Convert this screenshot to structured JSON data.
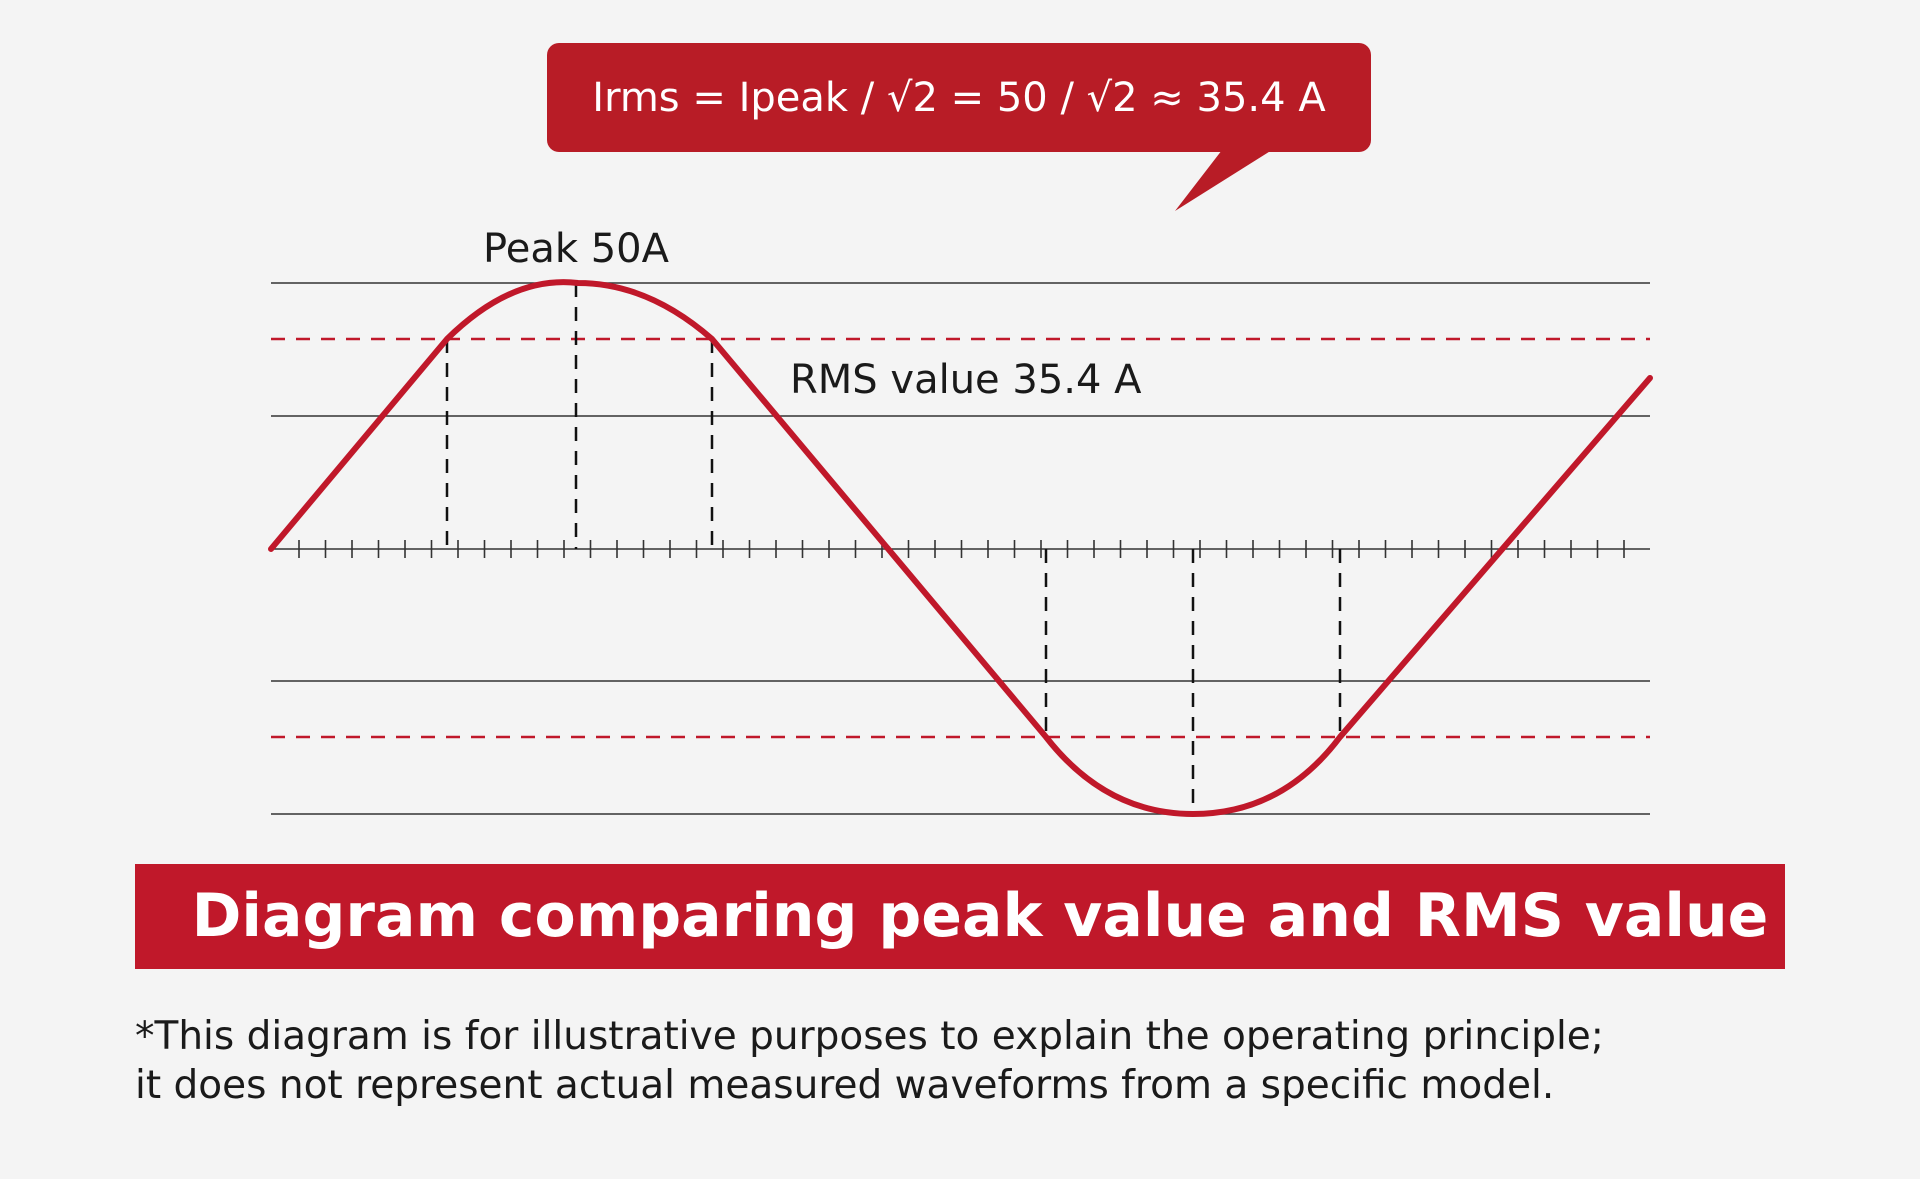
{
  "callout": {
    "text": "Irms = Ipeak / √2 = 50 / √2 ≈ 35.4 A"
  },
  "labels": {
    "peak": "Peak 50A",
    "rms": "RMS value 35.4 A"
  },
  "banner": {
    "title": "Diagram comparing peak value and RMS value"
  },
  "note": {
    "line1": "*This diagram is for illustrative purposes to explain the operating principle;",
    "line2": "it does not represent actual measured waveforms from a specific model."
  },
  "colors": {
    "accent": "#c0182a",
    "background": "#f4f4f4",
    "text": "#1a1a1a",
    "gridline": "#333333"
  }
}
